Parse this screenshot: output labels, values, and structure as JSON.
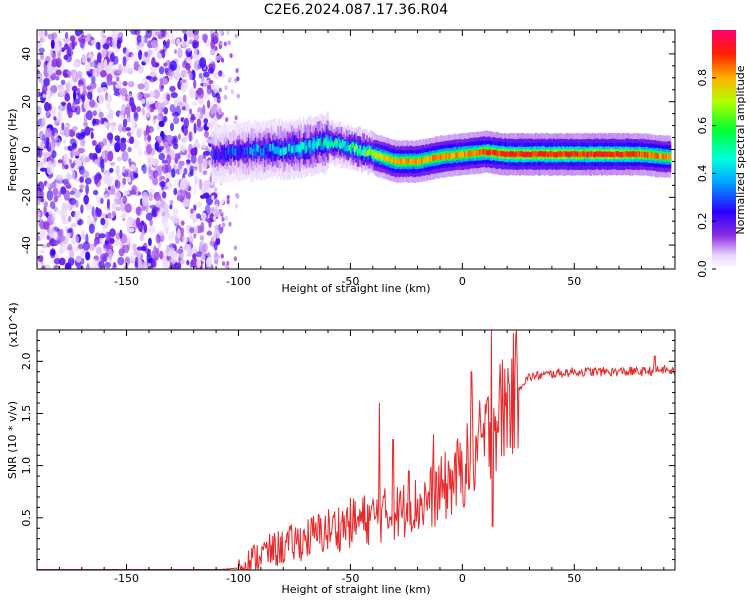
{
  "title": "C2E6.2024.087.17.36.R04",
  "chart_data": [
    {
      "type": "heatmap",
      "xlabel": "Height of straight line (km)",
      "ylabel": "Frequency (Hz)",
      "xlim": [
        -190,
        95
      ],
      "ylim": [
        -50,
        50
      ],
      "xticks": [
        -150,
        -100,
        -50,
        0,
        50
      ],
      "yticks": [
        -40,
        -20,
        0,
        20,
        40
      ],
      "colorbar": {
        "label": "Normalized spectral amplitude",
        "range": [
          0,
          1
        ],
        "ticks": [
          0.0,
          0.2,
          0.4,
          0.6,
          0.8
        ]
      },
      "ridge": {
        "x": [
          -110,
          -100,
          -90,
          -80,
          -70,
          -60,
          -50,
          -40,
          -30,
          -20,
          -10,
          0,
          10,
          20,
          30,
          40,
          50,
          60,
          70,
          80,
          90
        ],
        "y": [
          -2,
          -1,
          0,
          0,
          1,
          3,
          1,
          -2,
          -5,
          -5,
          -3,
          -2,
          -1,
          -2,
          -2,
          -2,
          -2,
          -2,
          -2,
          -2,
          -3
        ],
        "amplitude": [
          0.3,
          0.35,
          0.4,
          0.45,
          0.5,
          0.55,
          0.6,
          0.75,
          0.85,
          0.85,
          0.85,
          0.85,
          0.9,
          0.95,
          0.95,
          0.95,
          0.95,
          0.95,
          0.95,
          0.9,
          0.85
        ]
      }
    },
    {
      "type": "line",
      "xlabel": "Height of straight line (km)",
      "ylabel": "SNR (10 * v/v)",
      "y_multiplier": "(x10^4)",
      "xlim": [
        -190,
        95
      ],
      "ylim": [
        0,
        2.3
      ],
      "xticks": [
        -150,
        -100,
        -50,
        0,
        50
      ],
      "yticks": [
        0.5,
        1.0,
        1.5,
        2.0
      ],
      "color": "#e8282a",
      "series": [
        {
          "x": [
            -190,
            -150,
            -110,
            -100,
            -95,
            -90,
            -80,
            -70,
            -60,
            -50,
            -40,
            -30,
            -20,
            -10,
            0,
            5,
            10,
            15,
            20,
            25,
            30,
            40,
            50,
            60,
            70,
            80,
            90,
            95
          ],
          "values": [
            0.0,
            0.0,
            0.0,
            0.02,
            0.08,
            0.15,
            0.22,
            0.3,
            0.38,
            0.45,
            0.5,
            0.55,
            0.62,
            0.75,
            0.95,
            1.1,
            1.25,
            1.45,
            1.6,
            1.75,
            1.85,
            1.88,
            1.9,
            1.9,
            1.9,
            1.9,
            1.92,
            1.9
          ]
        }
      ],
      "spikes": [
        {
          "x": -37,
          "value": 1.6
        },
        {
          "x": -31,
          "value": 1.25
        },
        {
          "x": -24,
          "value": 0.95
        },
        {
          "x": -13,
          "value": 1.3
        },
        {
          "x": 4,
          "value": 1.9
        },
        {
          "x": 13,
          "value": 2.3
        },
        {
          "x": 13.5,
          "value": 0.42
        },
        {
          "x": 86,
          "value": 2.05
        },
        {
          "x": 75,
          "value": 1.95
        }
      ]
    }
  ]
}
